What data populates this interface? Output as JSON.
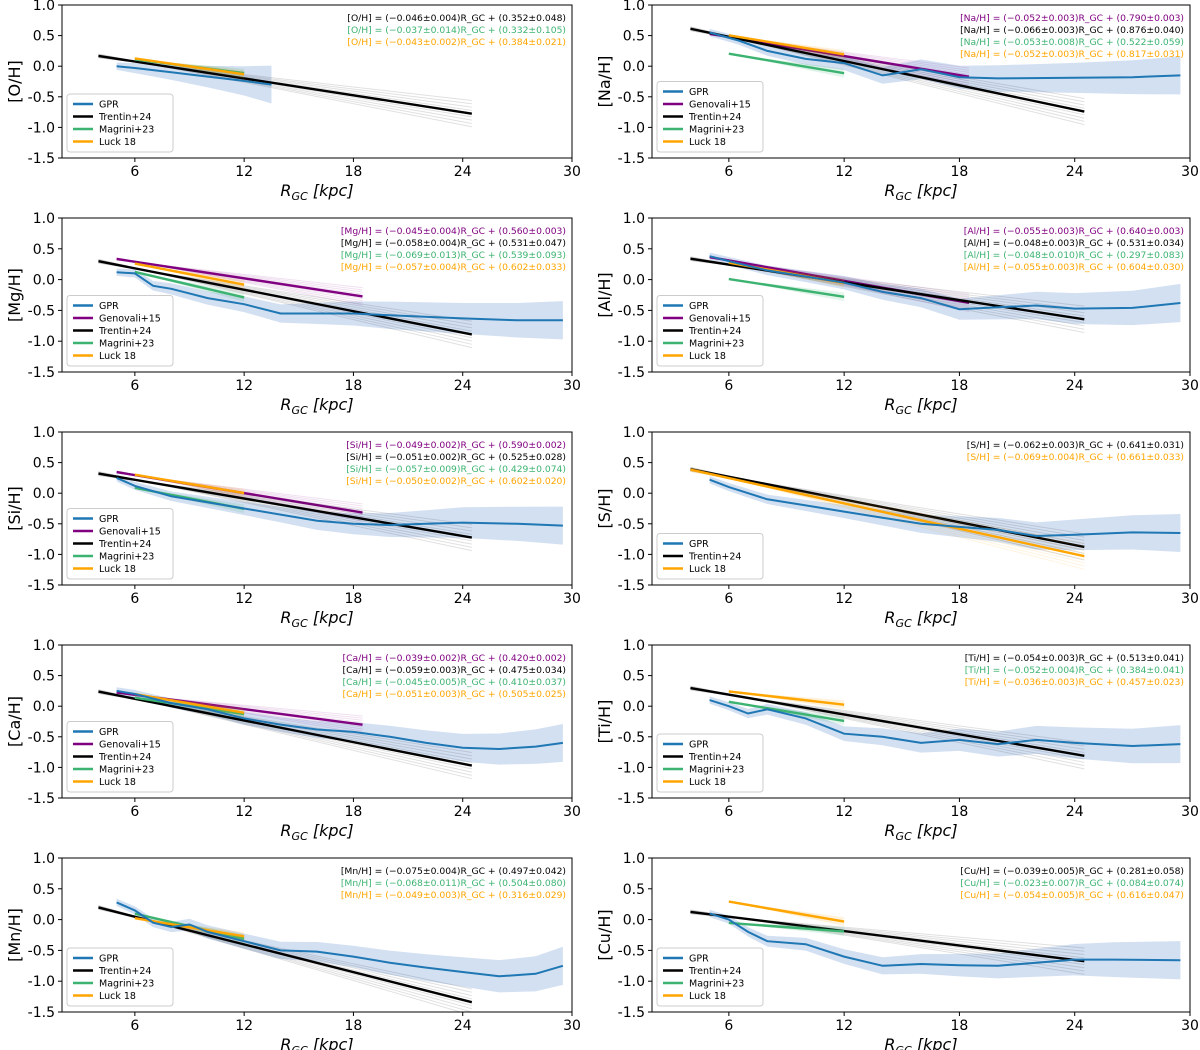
{
  "figure": {
    "xlabel_main": "R",
    "xlabel_sub": "GC",
    "xlabel_unit": " [kpc]",
    "xlim": [
      2,
      30
    ],
    "ylim": [
      -1.5,
      1.0
    ],
    "xticks": [
      6,
      12,
      18,
      24,
      30
    ],
    "yticks": [
      1.0,
      0.5,
      0.0,
      -0.5,
      -1.0,
      -1.5
    ],
    "colors": {
      "GPR": "#1f77b4",
      "GPR_band": "#aec7e8",
      "Genovali+15": "#800080",
      "Trentin+24": "#000000",
      "Magrini+23": "#3cb371",
      "Luck 18": "#ffa500"
    }
  },
  "chart_data": [
    {
      "type": "line",
      "ylabel": "[O/H]",
      "legend": [
        "GPR",
        "Trentin+24",
        "Magrini+23",
        "Luck 18"
      ],
      "legend_position": "lower-left",
      "equations": [
        {
          "name": "Trentin+24",
          "text": "[O/H] = (−0.046±0.004)R_GC + (0.352±0.048)"
        },
        {
          "name": "Magrini+23",
          "text": "[O/H] = (−0.037±0.014)R_GC + (0.332±0.105)"
        },
        {
          "name": "Luck 18",
          "text": "[O/H] = (−0.043±0.002)R_GC + (0.384±0.021)"
        }
      ],
      "series": [
        {
          "name": "Trentin+24",
          "slope": -0.046,
          "intercept": 0.352,
          "xrange": [
            4,
            24.5
          ]
        },
        {
          "name": "Magrini+23",
          "slope": -0.037,
          "intercept": 0.332,
          "xrange": [
            6,
            12
          ]
        },
        {
          "name": "Luck 18",
          "slope": -0.043,
          "intercept": 0.384,
          "xrange": [
            6,
            12
          ]
        },
        {
          "name": "GPR",
          "x": [
            5,
            6,
            8,
            10,
            12,
            13.5
          ],
          "y": [
            0.0,
            -0.03,
            -0.1,
            -0.17,
            -0.24,
            -0.3
          ]
        }
      ]
    },
    {
      "type": "line",
      "ylabel": "[Na/H]",
      "legend": [
        "GPR",
        "Genovali+15",
        "Trentin+24",
        "Magrini+23",
        "Luck 18"
      ],
      "legend_position": "lower-left",
      "equations": [
        {
          "name": "Genovali+15",
          "text": "[Na/H] = (−0.052±0.003)R_GC + (0.790±0.003)"
        },
        {
          "name": "Trentin+24",
          "text": "[Na/H] = (−0.066±0.003)R_GC + (0.876±0.040)"
        },
        {
          "name": "Magrini+23",
          "text": "[Na/H] = (−0.053±0.008)R_GC + (0.522±0.059)"
        },
        {
          "name": "Luck 18",
          "text": "[Na/H] = (−0.052±0.003)R_GC + (0.817±0.031)"
        }
      ],
      "series": [
        {
          "name": "Genovali+15",
          "slope": -0.052,
          "intercept": 0.79,
          "xrange": [
            5,
            18.5
          ]
        },
        {
          "name": "Trentin+24",
          "slope": -0.066,
          "intercept": 0.876,
          "xrange": [
            4,
            24.5
          ]
        },
        {
          "name": "Magrini+23",
          "slope": -0.053,
          "intercept": 0.522,
          "xrange": [
            6,
            12
          ]
        },
        {
          "name": "Luck 18",
          "slope": -0.052,
          "intercept": 0.817,
          "xrange": [
            6,
            12
          ]
        },
        {
          "name": "GPR",
          "x": [
            5,
            6.5,
            8,
            10,
            12,
            14,
            16,
            18,
            20,
            24,
            27,
            29.5
          ],
          "y": [
            0.55,
            0.42,
            0.25,
            0.12,
            0.05,
            -0.15,
            -0.05,
            -0.18,
            -0.2,
            -0.19,
            -0.18,
            -0.15
          ]
        }
      ]
    },
    {
      "type": "line",
      "ylabel": "[Mg/H]",
      "legend": [
        "GPR",
        "Genovali+15",
        "Trentin+24",
        "Magrini+23",
        "Luck 18"
      ],
      "legend_position": "lower-left",
      "equations": [
        {
          "name": "Genovali+15",
          "text": "[Mg/H] = (−0.045±0.004)R_GC + (0.560±0.003)"
        },
        {
          "name": "Trentin+24",
          "text": "[Mg/H] = (−0.058±0.004)R_GC + (0.531±0.047)"
        },
        {
          "name": "Magrini+23",
          "text": "[Mg/H] = (−0.069±0.013)R_GC + (0.539±0.093)"
        },
        {
          "name": "Luck 18",
          "text": "[Mg/H] = (−0.057±0.004)R_GC + (0.602±0.033)"
        }
      ],
      "series": [
        {
          "name": "Genovali+15",
          "slope": -0.045,
          "intercept": 0.56,
          "xrange": [
            5,
            18.5
          ]
        },
        {
          "name": "Trentin+24",
          "slope": -0.058,
          "intercept": 0.531,
          "xrange": [
            4,
            24.5
          ]
        },
        {
          "name": "Magrini+23",
          "slope": -0.069,
          "intercept": 0.539,
          "xrange": [
            6,
            12
          ]
        },
        {
          "name": "Luck 18",
          "slope": -0.057,
          "intercept": 0.602,
          "xrange": [
            6,
            12
          ]
        },
        {
          "name": "GPR",
          "x": [
            5,
            6,
            7,
            8,
            10,
            12,
            14,
            16,
            18,
            20,
            24,
            27,
            29.5
          ],
          "y": [
            0.12,
            0.1,
            -0.1,
            -0.15,
            -0.3,
            -0.4,
            -0.55,
            -0.55,
            -0.55,
            -0.58,
            -0.63,
            -0.66,
            -0.66
          ]
        }
      ]
    },
    {
      "type": "line",
      "ylabel": "[Al/H]",
      "legend": [
        "GPR",
        "Genovali+15",
        "Trentin+24",
        "Magrini+23",
        "Luck 18"
      ],
      "legend_position": "lower-left",
      "equations": [
        {
          "name": "Genovali+15",
          "text": "[Al/H] = (−0.055±0.003)R_GC + (0.640±0.003)"
        },
        {
          "name": "Trentin+24",
          "text": "[Al/H] = (−0.048±0.003)R_GC + (0.531±0.034)"
        },
        {
          "name": "Magrini+23",
          "text": "[Al/H] = (−0.048±0.010)R_GC + (0.297±0.083)"
        },
        {
          "name": "Luck 18",
          "text": "[Al/H] = (−0.055±0.003)R_GC + (0.604±0.030)"
        }
      ],
      "series": [
        {
          "name": "Genovali+15",
          "slope": -0.055,
          "intercept": 0.64,
          "xrange": [
            5,
            18.5
          ]
        },
        {
          "name": "Trentin+24",
          "slope": -0.048,
          "intercept": 0.531,
          "xrange": [
            4,
            24.5
          ]
        },
        {
          "name": "Magrini+23",
          "slope": -0.048,
          "intercept": 0.297,
          "xrange": [
            6,
            12
          ]
        },
        {
          "name": "Luck 18",
          "slope": -0.055,
          "intercept": 0.604,
          "xrange": [
            6,
            12
          ]
        },
        {
          "name": "GPR",
          "x": [
            5,
            6,
            8,
            10,
            12,
            14,
            16,
            18,
            20,
            22,
            24,
            27,
            29.5
          ],
          "y": [
            0.38,
            0.3,
            0.15,
            0.05,
            -0.05,
            -0.2,
            -0.3,
            -0.48,
            -0.45,
            -0.42,
            -0.47,
            -0.46,
            -0.38
          ]
        }
      ]
    },
    {
      "type": "line",
      "ylabel": "[Si/H]",
      "legend": [
        "GPR",
        "Genovali+15",
        "Trentin+24",
        "Magrini+23",
        "Luck 18"
      ],
      "legend_position": "lower-left",
      "equations": [
        {
          "name": "Genovali+15",
          "text": "[Si/H] = (−0.049±0.002)R_GC + (0.590±0.002)"
        },
        {
          "name": "Trentin+24",
          "text": "[Si/H] = (−0.051±0.002)R_GC + (0.525±0.028)"
        },
        {
          "name": "Magrini+23",
          "text": "[Si/H] = (−0.057±0.009)R_GC + (0.429±0.074)"
        },
        {
          "name": "Luck 18",
          "text": "[Si/H] = (−0.050±0.002)R_GC + (0.602±0.020)"
        }
      ],
      "series": [
        {
          "name": "Genovali+15",
          "slope": -0.049,
          "intercept": 0.59,
          "xrange": [
            5,
            18.5
          ]
        },
        {
          "name": "Trentin+24",
          "slope": -0.051,
          "intercept": 0.525,
          "xrange": [
            4,
            24.5
          ]
        },
        {
          "name": "Magrini+23",
          "slope": -0.057,
          "intercept": 0.429,
          "xrange": [
            6,
            12
          ]
        },
        {
          "name": "Luck 18",
          "slope": -0.05,
          "intercept": 0.602,
          "xrange": [
            6,
            12
          ]
        },
        {
          "name": "GPR",
          "x": [
            5,
            6,
            8,
            10,
            12,
            14,
            16,
            18,
            20,
            22,
            24,
            27,
            29.5
          ],
          "y": [
            0.25,
            0.12,
            -0.05,
            -0.15,
            -0.25,
            -0.35,
            -0.45,
            -0.5,
            -0.52,
            -0.5,
            -0.48,
            -0.5,
            -0.53
          ]
        }
      ]
    },
    {
      "type": "line",
      "ylabel": "[S/H]",
      "legend": [
        "GPR",
        "Trentin+24",
        "Luck 18"
      ],
      "legend_position": "lower-left",
      "equations": [
        {
          "name": "Trentin+24",
          "text": "[S/H] = (−0.062±0.003)R_GC + (0.641±0.031)"
        },
        {
          "name": "Luck 18",
          "text": "[S/H] = (−0.069±0.004)R_GC + (0.661±0.033)"
        }
      ],
      "series": [
        {
          "name": "Trentin+24",
          "slope": -0.062,
          "intercept": 0.641,
          "xrange": [
            4,
            24.5
          ]
        },
        {
          "name": "Luck 18",
          "slope": -0.069,
          "intercept": 0.661,
          "xrange": [
            4,
            24.5
          ]
        },
        {
          "name": "GPR",
          "x": [
            5,
            6,
            8,
            10,
            12,
            14,
            16,
            18,
            20,
            22,
            24,
            27,
            29.5
          ],
          "y": [
            0.22,
            0.1,
            -0.1,
            -0.2,
            -0.3,
            -0.4,
            -0.5,
            -0.55,
            -0.6,
            -0.7,
            -0.68,
            -0.64,
            -0.65
          ]
        }
      ]
    },
    {
      "type": "line",
      "ylabel": "[Ca/H]",
      "legend": [
        "GPR",
        "Genovali+15",
        "Trentin+24",
        "Magrini+23",
        "Luck 18"
      ],
      "legend_position": "lower-left",
      "equations": [
        {
          "name": "Genovali+15",
          "text": "[Ca/H] = (−0.039±0.002)R_GC + (0.420±0.002)"
        },
        {
          "name": "Trentin+24",
          "text": "[Ca/H] = (−0.059±0.003)R_GC + (0.475±0.034)"
        },
        {
          "name": "Magrini+23",
          "text": "[Ca/H] = (−0.045±0.005)R_GC + (0.410±0.037)"
        },
        {
          "name": "Luck 18",
          "text": "[Ca/H] = (−0.051±0.003)R_GC + (0.505±0.025)"
        }
      ],
      "series": [
        {
          "name": "Genovali+15",
          "slope": -0.039,
          "intercept": 0.42,
          "xrange": [
            5,
            18.5
          ]
        },
        {
          "name": "Trentin+24",
          "slope": -0.059,
          "intercept": 0.475,
          "xrange": [
            4,
            24.5
          ]
        },
        {
          "name": "Magrini+23",
          "slope": -0.045,
          "intercept": 0.41,
          "xrange": [
            6,
            12
          ]
        },
        {
          "name": "Luck 18",
          "slope": -0.051,
          "intercept": 0.505,
          "xrange": [
            6,
            12
          ]
        },
        {
          "name": "GPR",
          "x": [
            5,
            6,
            8,
            10,
            12,
            14,
            16,
            18,
            20,
            22,
            24,
            26,
            28,
            29.5
          ],
          "y": [
            0.25,
            0.2,
            0.05,
            -0.05,
            -0.2,
            -0.3,
            -0.38,
            -0.42,
            -0.5,
            -0.6,
            -0.68,
            -0.7,
            -0.66,
            -0.6
          ]
        }
      ]
    },
    {
      "type": "line",
      "ylabel": "[Ti/H]",
      "legend": [
        "GPR",
        "Trentin+24",
        "Magrini+23",
        "Luck 18"
      ],
      "legend_position": "lower-left",
      "equations": [
        {
          "name": "Trentin+24",
          "text": "[Ti/H] = (−0.054±0.003)R_GC + (0.513±0.041)"
        },
        {
          "name": "Magrini+23",
          "text": "[Ti/H] = (−0.052±0.004)R_GC + (0.384±0.041)"
        },
        {
          "name": "Luck 18",
          "text": "[Ti/H] = (−0.036±0.003)R_GC + (0.457±0.023)"
        }
      ],
      "series": [
        {
          "name": "Trentin+24",
          "slope": -0.054,
          "intercept": 0.513,
          "xrange": [
            4,
            24.5
          ]
        },
        {
          "name": "Magrini+23",
          "slope": -0.052,
          "intercept": 0.384,
          "xrange": [
            6,
            12
          ]
        },
        {
          "name": "Luck 18",
          "slope": -0.036,
          "intercept": 0.457,
          "xrange": [
            6,
            12
          ]
        },
        {
          "name": "GPR",
          "x": [
            5,
            6,
            7,
            8,
            10,
            12,
            14,
            16,
            18,
            20,
            22,
            24,
            27,
            29.5
          ],
          "y": [
            0.1,
            0.0,
            -0.12,
            -0.05,
            -0.2,
            -0.45,
            -0.5,
            -0.6,
            -0.55,
            -0.62,
            -0.55,
            -0.6,
            -0.65,
            -0.62
          ]
        }
      ]
    },
    {
      "type": "line",
      "ylabel": "[Mn/H]",
      "legend": [
        "GPR",
        "Trentin+24",
        "Magrini+23",
        "Luck 18"
      ],
      "legend_position": "lower-left",
      "equations": [
        {
          "name": "Trentin+24",
          "text": "[Mn/H] = (−0.075±0.004)R_GC + (0.497±0.042)"
        },
        {
          "name": "Magrini+23",
          "text": "[Mn/H] = (−0.068±0.011)R_GC + (0.504±0.080)"
        },
        {
          "name": "Luck 18",
          "text": "[Mn/H] = (−0.049±0.003)R_GC + (0.316±0.029)"
        }
      ],
      "series": [
        {
          "name": "Trentin+24",
          "slope": -0.075,
          "intercept": 0.497,
          "xrange": [
            4,
            24.5
          ]
        },
        {
          "name": "Magrini+23",
          "slope": -0.068,
          "intercept": 0.504,
          "xrange": [
            6,
            12
          ]
        },
        {
          "name": "Luck 18",
          "slope": -0.049,
          "intercept": 0.316,
          "xrange": [
            6,
            12
          ]
        },
        {
          "name": "GPR",
          "x": [
            5,
            6,
            7,
            8,
            9,
            10,
            12,
            14,
            16,
            18,
            20,
            22,
            24,
            26,
            28,
            29.5
          ],
          "y": [
            0.28,
            0.15,
            -0.05,
            -0.12,
            -0.08,
            -0.2,
            -0.35,
            -0.5,
            -0.52,
            -0.6,
            -0.7,
            -0.78,
            -0.85,
            -0.92,
            -0.88,
            -0.75
          ]
        }
      ]
    },
    {
      "type": "line",
      "ylabel": "[Cu/H]",
      "legend": [
        "GPR",
        "Trentin+24",
        "Magrini+23",
        "Luck 18"
      ],
      "legend_position": "lower-left",
      "equations": [
        {
          "name": "Trentin+24",
          "text": "[Cu/H] = (−0.039±0.005)R_GC + (0.281±0.058)"
        },
        {
          "name": "Magrini+23",
          "text": "[Cu/H] = (−0.023±0.007)R_GC + (0.084±0.074)"
        },
        {
          "name": "Luck 18",
          "text": "[Cu/H] = (−0.054±0.005)R_GC + (0.616±0.047)"
        }
      ],
      "series": [
        {
          "name": "Trentin+24",
          "slope": -0.039,
          "intercept": 0.281,
          "xrange": [
            4,
            24.5
          ]
        },
        {
          "name": "Magrini+23",
          "slope": -0.023,
          "intercept": 0.084,
          "xrange": [
            6,
            12
          ]
        },
        {
          "name": "Luck 18",
          "slope": -0.054,
          "intercept": 0.616,
          "xrange": [
            6,
            12
          ]
        },
        {
          "name": "GPR",
          "x": [
            5,
            6,
            7,
            8,
            10,
            12,
            14,
            16,
            18,
            20,
            22,
            24,
            26,
            29.5
          ],
          "y": [
            0.1,
            0.0,
            -0.2,
            -0.35,
            -0.4,
            -0.6,
            -0.75,
            -0.72,
            -0.74,
            -0.75,
            -0.7,
            -0.65,
            -0.65,
            -0.66
          ]
        }
      ]
    }
  ]
}
